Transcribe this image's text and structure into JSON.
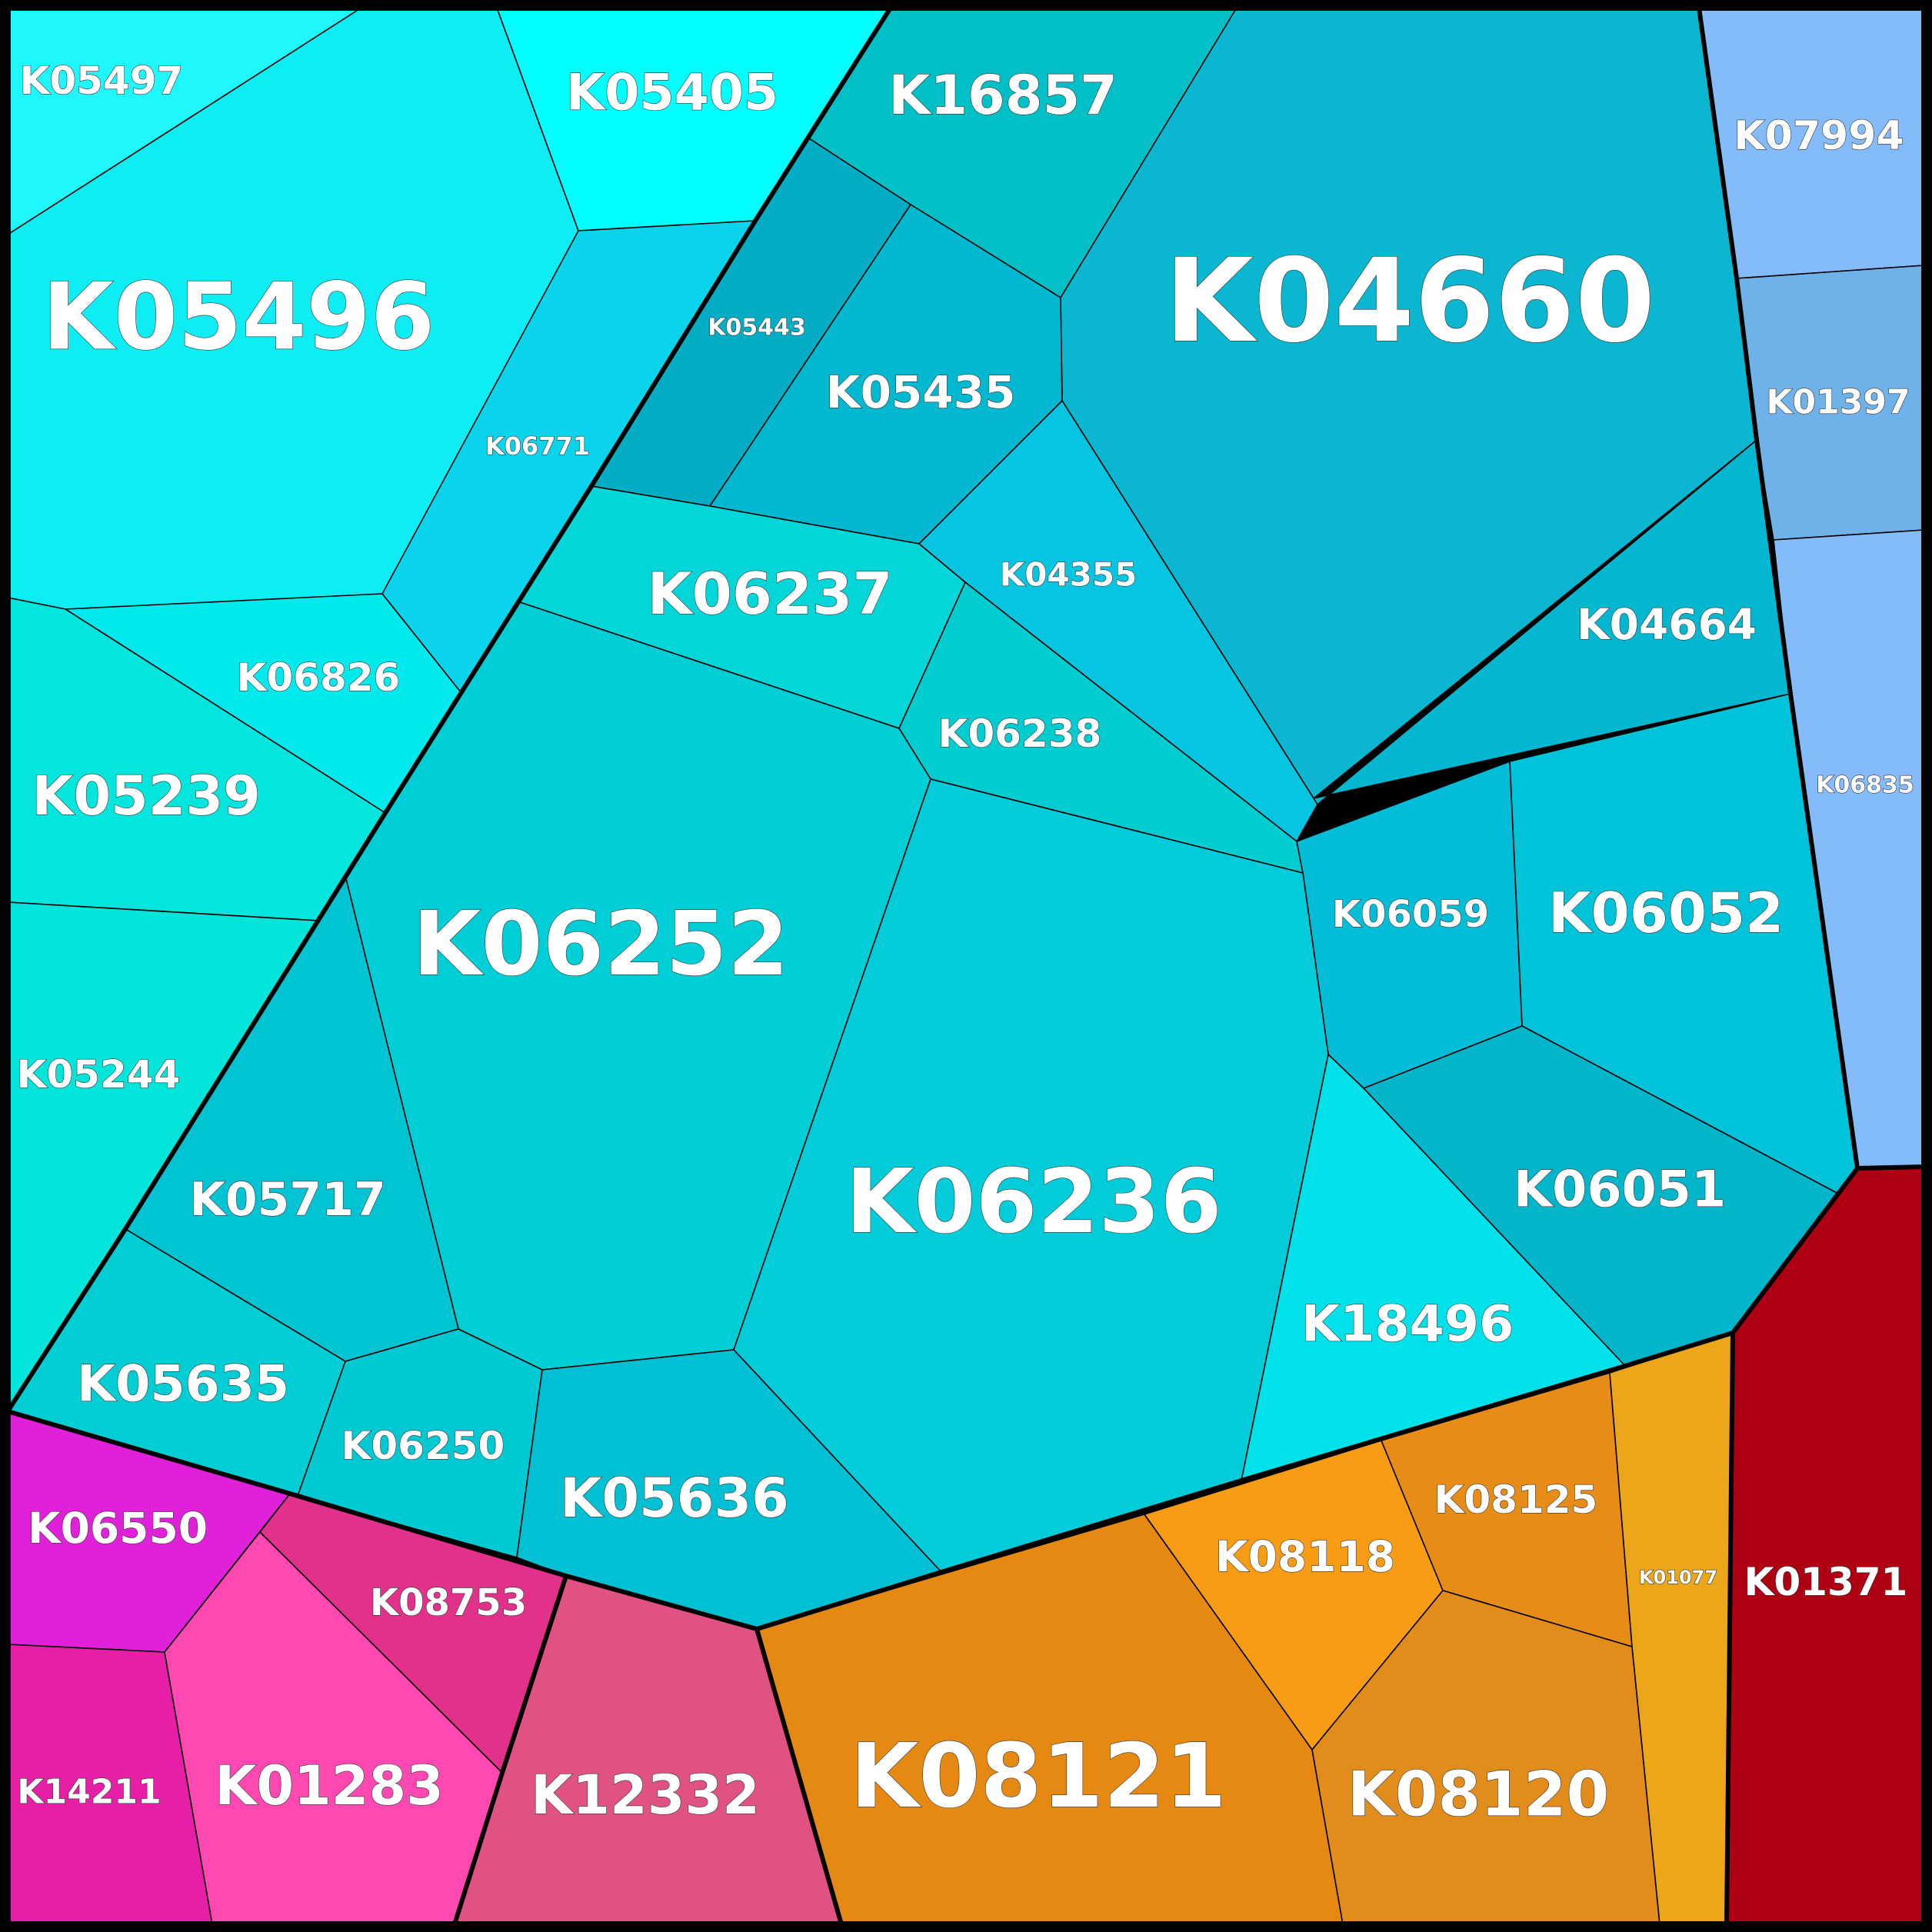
{
  "chart_data": {
    "type": "voronoi-treemap",
    "cells": [
      {
        "id": "K05497",
        "label": "K05497",
        "color": "#1ef7fb"
      },
      {
        "id": "K05496",
        "label": "K05496",
        "color": "#0eecf4"
      },
      {
        "id": "K05405",
        "label": "K05405",
        "color": "#00ffff"
      },
      {
        "id": "K16857",
        "label": "K16857",
        "color": "#00bfc6"
      },
      {
        "id": "K04660",
        "label": "K04660",
        "color": "#0bb6d1"
      },
      {
        "id": "K07994",
        "label": "K07994",
        "color": "#84bbfa"
      },
      {
        "id": "K01397",
        "label": "K01397",
        "color": "#6fb2ea"
      },
      {
        "id": "K06835",
        "label": "K06835",
        "color": "#84bbfa"
      },
      {
        "id": "K05443",
        "label": "K05443",
        "color": "#03adc6"
      },
      {
        "id": "K05435",
        "label": "K05435",
        "color": "#00b9d1"
      },
      {
        "id": "K06771",
        "label": "K06771",
        "color": "#0ad4ec"
      },
      {
        "id": "K06826",
        "label": "K06826",
        "color": "#00eaee"
      },
      {
        "id": "K05239",
        "label": "K05239",
        "color": "#04e5dd"
      },
      {
        "id": "K05244",
        "label": "K05244",
        "color": "#03e4db"
      },
      {
        "id": "K06237",
        "label": "K06237",
        "color": "#03d6d8"
      },
      {
        "id": "K04355",
        "label": "K04355",
        "color": "#05c5e1"
      },
      {
        "id": "K04664",
        "label": "K04664",
        "color": "#03b7d1"
      },
      {
        "id": "K06238",
        "label": "K06238",
        "color": "#01cccf"
      },
      {
        "id": "K06252",
        "label": "K06252",
        "color": "#00ced6"
      },
      {
        "id": "K06059",
        "label": "K06059",
        "color": "#03bcd7"
      },
      {
        "id": "K06052",
        "label": "K06052",
        "color": "#00c3da"
      },
      {
        "id": "K05717",
        "label": "K05717",
        "color": "#00c4d3"
      },
      {
        "id": "K06236",
        "label": "K06236",
        "color": "#02cbda"
      },
      {
        "id": "K06051",
        "label": "K06051",
        "color": "#01b5cb"
      },
      {
        "id": "K18496",
        "label": "K18496",
        "color": "#01e1ea"
      },
      {
        "id": "K05635",
        "label": "K05635",
        "color": "#01cdd4"
      },
      {
        "id": "K06250",
        "label": "K06250",
        "color": "#01c9d4"
      },
      {
        "id": "K05636",
        "label": "K05636",
        "color": "#01c0d3"
      },
      {
        "id": "K06550",
        "label": "K06550",
        "color": "#e120da"
      },
      {
        "id": "K08753",
        "label": "K08753",
        "color": "#e2318a"
      },
      {
        "id": "K14211",
        "label": "K14211",
        "color": "#e61fa6"
      },
      {
        "id": "K01283",
        "label": "K01283",
        "color": "#ff48b1"
      },
      {
        "id": "K12332",
        "label": "K12332",
        "color": "#e15284"
      },
      {
        "id": "K08121",
        "label": "K08121",
        "color": "#e58912"
      },
      {
        "id": "K08118",
        "label": "K08118",
        "color": "#f89c15"
      },
      {
        "id": "K08125",
        "label": "K08125",
        "color": "#e88c18"
      },
      {
        "id": "K08120",
        "label": "K08120",
        "color": "#e28c1c"
      },
      {
        "id": "K01077",
        "label": "K01077",
        "color": "#eca61a"
      },
      {
        "id": "K01371",
        "label": "K01371",
        "color": "#ae0012"
      }
    ]
  }
}
